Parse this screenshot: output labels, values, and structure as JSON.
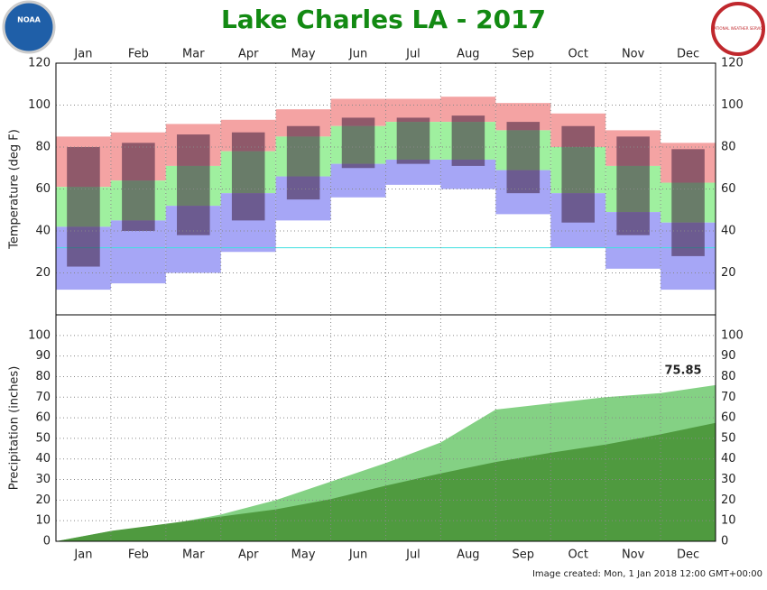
{
  "title": "Lake Charles LA - 2017",
  "footer": "Image created: Mon, 1 Jan 2018 12:00 GMT+00:00",
  "logos": {
    "left": "NOAA",
    "right": "NATIONAL WEATHER SERVICE"
  },
  "chart_data": [
    {
      "type": "range",
      "y_label": "Temperature (deg F)",
      "categories": [
        "Jan",
        "Feb",
        "Mar",
        "Apr",
        "May",
        "Jun",
        "Jul",
        "Aug",
        "Sep",
        "Oct",
        "Nov",
        "Dec"
      ],
      "ylim": [
        0,
        120
      ],
      "yticks": [
        20,
        40,
        60,
        80,
        100,
        120
      ],
      "grid": true,
      "reference_line": {
        "value": 32,
        "color": "#40e0e0"
      },
      "series": [
        {
          "color": "#f4a3a3",
          "values": [
            85,
            87,
            91,
            93,
            98,
            103,
            103,
            104,
            101,
            96,
            88,
            82
          ]
        },
        {
          "color": "#9ff09f",
          "values": [
            61,
            64,
            71,
            78,
            85,
            90,
            92,
            92,
            88,
            80,
            71,
            63
          ]
        },
        {
          "color": "#a6a6f6",
          "values": [
            42,
            45,
            52,
            58,
            66,
            72,
            74,
            74,
            69,
            58,
            49,
            44
          ]
        },
        {
          "color": "#a6a6f6",
          "values": [
            12,
            15,
            20,
            30,
            45,
            56,
            62,
            60,
            48,
            32,
            22,
            12
          ]
        },
        {
          "color": "#3c1e3c",
          "values": [
            80,
            82,
            86,
            87,
            90,
            94,
            94,
            95,
            92,
            90,
            85,
            79
          ]
        },
        {
          "color": "#3c1e3c",
          "values": [
            23,
            40,
            38,
            45,
            55,
            70,
            72,
            71,
            58,
            44,
            38,
            28
          ]
        }
      ]
    },
    {
      "type": "area",
      "y_label": "Precipitation (inches)",
      "categories": [
        "Jan",
        "Feb",
        "Mar",
        "Apr",
        "May",
        "Jun",
        "Jul",
        "Aug",
        "Sep",
        "Oct",
        "Nov",
        "Dec"
      ],
      "ylim": [
        0,
        110
      ],
      "yticks": [
        0,
        10,
        20,
        30,
        40,
        50,
        60,
        70,
        80,
        90,
        100
      ],
      "grid": true,
      "series": [
        {
          "color": "#84d184",
          "values": [
            5,
            8,
            13,
            20,
            29,
            38,
            48,
            64,
            67,
            70,
            72,
            75.85
          ]
        },
        {
          "color": "#4f9a3f",
          "values": [
            5,
            8.5,
            12,
            15.5,
            20.5,
            27,
            33,
            38.5,
            43,
            47,
            52,
            57.5
          ]
        }
      ]
    }
  ]
}
